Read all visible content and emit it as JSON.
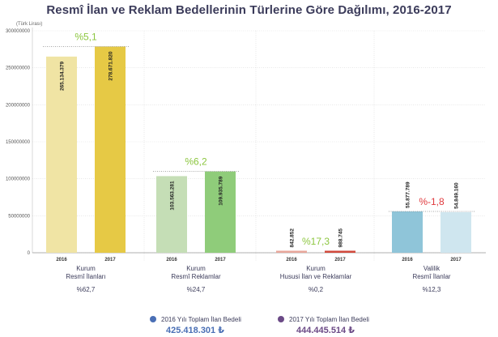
{
  "title": "Resmî İlan ve Reklam Bedellerinin Türlerine Göre Dağılımı, 2016-2017",
  "unit": "(Türk Lirası)",
  "colors": {
    "y2016": "#4a6fb5",
    "y2017": "#6b4a86",
    "grid": "#d9d9d9",
    "axis": "#cfcfcf",
    "positive": "#8cc63f",
    "negative": "#e03a3e"
  },
  "chart_data": {
    "type": "bar",
    "title": "Resmî İlan ve Reklam Bedellerinin Türlerine Göre Dağılımı, 2016-2017",
    "ylabel": "(Türk Lirası)",
    "ylim": [
      0,
      300000000
    ],
    "yticks": [
      "0",
      "50000000",
      "100000000",
      "150000000",
      "200000000",
      "250000000",
      "300000000"
    ],
    "grid": true,
    "groups": [
      {
        "category": "Kurum\nResmî İlanları",
        "share": "%62,7",
        "change": "%5,1",
        "change_sign": "positive",
        "bars": [
          {
            "year": "2016",
            "value": 265134379,
            "label": "265.134.379",
            "color": "#f0e4a4"
          },
          {
            "year": "2017",
            "value": 278671820,
            "label": "278.671.820",
            "color": "#e6c945"
          }
        ]
      },
      {
        "category": "Kurum\nResmî Reklamlar",
        "share": "%24,7",
        "change": "%6,2",
        "change_sign": "positive",
        "bars": [
          {
            "year": "2016",
            "value": 103563281,
            "label": "103.563.281",
            "color": "#c5deb6"
          },
          {
            "year": "2017",
            "value": 109935789,
            "label": "109.935.789",
            "color": "#8fcc7a"
          }
        ]
      },
      {
        "category": "Kurum\nHususi İlan ve Reklamlar",
        "share": "%0,2",
        "change": "%17,3",
        "change_sign": "positive",
        "bars": [
          {
            "year": "2016",
            "value": 842852,
            "label": "842.852",
            "color": "#e8a79b"
          },
          {
            "year": "2017",
            "value": 988745,
            "label": "988.745",
            "color": "#d14a3c"
          }
        ]
      },
      {
        "category": "Valilik\nResmî İlanlar",
        "share": "%12,3",
        "change": "%-1,8",
        "change_sign": "negative",
        "bars": [
          {
            "year": "2016",
            "value": 55877789,
            "label": "55.877.789",
            "color": "#8fc5d9"
          },
          {
            "year": "2017",
            "value": 54849160,
            "label": "54.849.160",
            "color": "#cfe6ef"
          }
        ]
      }
    ]
  },
  "totals": [
    {
      "label": "2016 Yılı Toplam İlan Bedeli",
      "amount": "425.418.301 ₺",
      "color": "#4a6fb5"
    },
    {
      "label": "2017 Yılı Toplam İlan Bedeli",
      "amount": "444.445.514 ₺",
      "color": "#6b4a86"
    }
  ]
}
